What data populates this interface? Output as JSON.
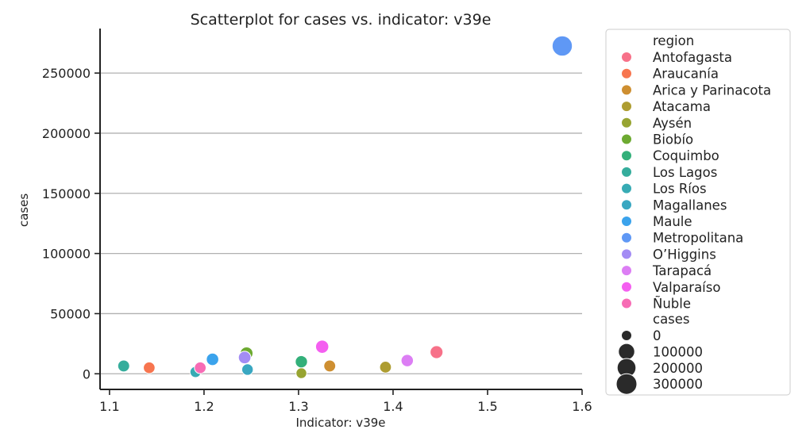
{
  "chart_data": {
    "type": "scatter",
    "title": "Scatterplot for cases vs. indicator: v39e",
    "xlabel": "Indicator: v39e",
    "ylabel": "cases",
    "xlim": [
      1.09,
      1.6
    ],
    "ylim": [
      -13000,
      287000
    ],
    "xticks": [
      1.1,
      1.2,
      1.3,
      1.4,
      1.5,
      1.6
    ],
    "xtick_labels": [
      "1.1",
      "1.2",
      "1.3",
      "1.4",
      "1.5",
      "1.6"
    ],
    "yticks": [
      0,
      50000,
      100000,
      150000,
      200000,
      250000
    ],
    "ytick_labels": [
      "0",
      "50000",
      "100000",
      "150000",
      "200000",
      "250000"
    ],
    "grid": "horizontal",
    "legend_position": "right outside",
    "hue_title": "region",
    "size_title": "cases",
    "size_legend": [
      {
        "label": "0",
        "value": 0
      },
      {
        "label": "100000",
        "value": 100000
      },
      {
        "label": "200000",
        "value": 200000
      },
      {
        "label": "300000",
        "value": 300000
      }
    ],
    "points": [
      {
        "region": "Antofagasta",
        "x": 1.446,
        "y": 18000,
        "color": "#f77189"
      },
      {
        "region": "Araucanía",
        "x": 1.142,
        "y": 5000,
        "color": "#f7754f"
      },
      {
        "region": "Arica y Parinacota",
        "x": 1.333,
        "y": 6500,
        "color": "#ce8f31"
      },
      {
        "region": "Atacama",
        "x": 1.392,
        "y": 5500,
        "color": "#ae9d31"
      },
      {
        "region": "Aysén",
        "x": 1.303,
        "y": 500,
        "color": "#97a431"
      },
      {
        "region": "Biobío",
        "x": 1.245,
        "y": 17000,
        "color": "#6daa31"
      },
      {
        "region": "Coquimbo",
        "x": 1.303,
        "y": 10000,
        "color": "#33b07a"
      },
      {
        "region": "Los Lagos",
        "x": 1.115,
        "y": 6500,
        "color": "#35ad9c"
      },
      {
        "region": "Los Ríos",
        "x": 1.191,
        "y": 1500,
        "color": "#37abb4"
      },
      {
        "region": "Magallanes",
        "x": 1.246,
        "y": 3500,
        "color": "#39a7c1"
      },
      {
        "region": "Maule",
        "x": 1.209,
        "y": 12000,
        "color": "#3ba3ec"
      },
      {
        "region": "Metropolitana",
        "x": 1.579,
        "y": 272500,
        "color": "#5f98f5"
      },
      {
        "region": "O’Higgins",
        "x": 1.243,
        "y": 13500,
        "color": "#a38cf4"
      },
      {
        "region": "Tarapacá",
        "x": 1.415,
        "y": 11000,
        "color": "#dc7ef4"
      },
      {
        "region": "Valparaíso",
        "x": 1.325,
        "y": 22500,
        "color": "#f45ff0"
      },
      {
        "region": "Ñuble",
        "x": 1.196,
        "y": 5000,
        "color": "#f76cb5"
      }
    ]
  }
}
